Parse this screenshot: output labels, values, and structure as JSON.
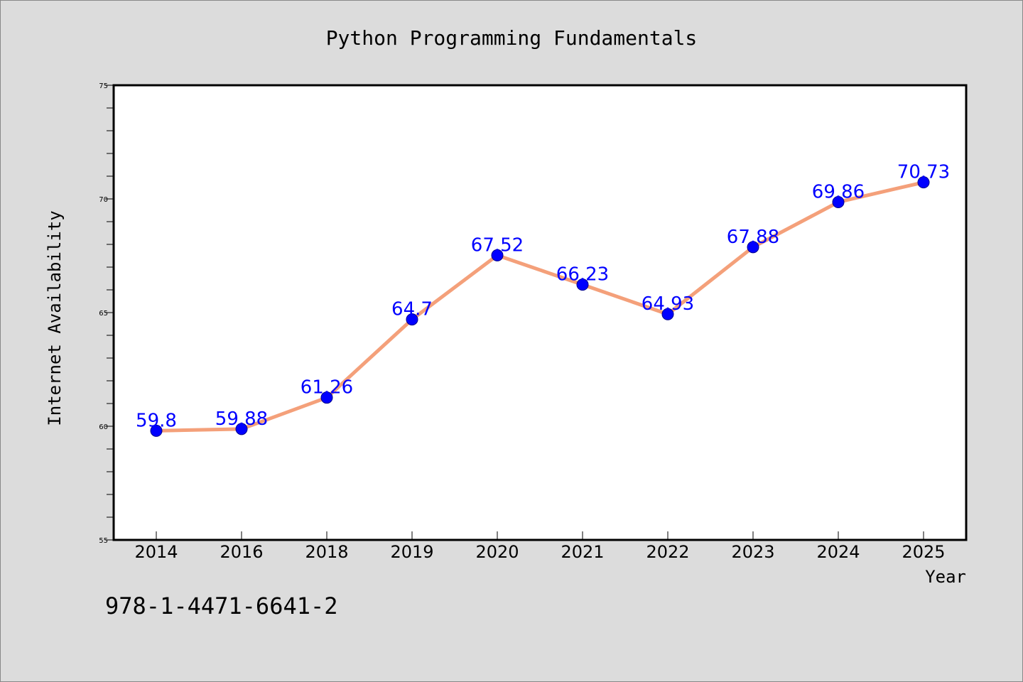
{
  "chart_data": {
    "type": "line",
    "title": "Python Programming Fundamentals",
    "xlabel": "Year",
    "ylabel": "Internet Availability",
    "categories": [
      "2014",
      "2016",
      "2018",
      "2019",
      "2020",
      "2021",
      "2022",
      "2023",
      "2024",
      "2025"
    ],
    "values": [
      59.8,
      59.88,
      61.26,
      64.7,
      67.52,
      66.23,
      64.93,
      67.88,
      69.86,
      70.73
    ],
    "data_labels": [
      "59.8",
      "59.88",
      "61.26",
      "64.7",
      "67.52",
      "66.23",
      "64.93",
      "67.88",
      "69.86",
      "70.73"
    ],
    "ylim": [
      55,
      75
    ],
    "yticks": [
      55,
      60,
      65,
      70,
      75
    ],
    "grid": false,
    "line_color": "#f4a07a",
    "marker_color": "#0000ff",
    "label_color": "#0000ff"
  },
  "footer_text": "978-1-4471-6641-2"
}
